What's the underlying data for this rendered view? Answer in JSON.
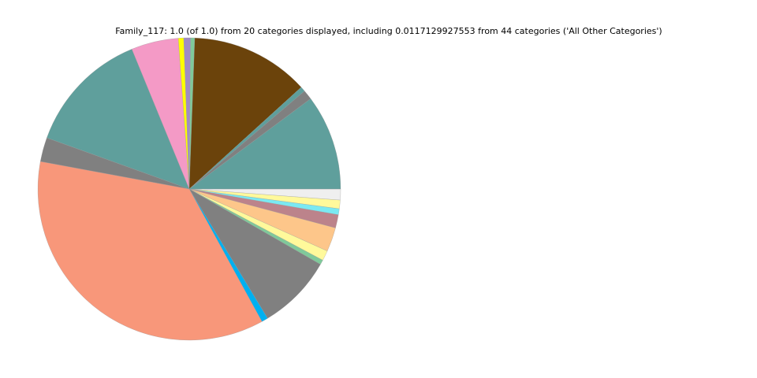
{
  "chart_data": {
    "type": "pie",
    "title": "Family_117: 1.0 (of 1.0) from 20 categories displayed, including 0.0117129927553 from 44 categories ('All Other Categories')",
    "start_angle_deg": 0,
    "direction": "clockwise",
    "slices": [
      {
        "value": 0.0117,
        "color": "#efefef"
      },
      {
        "value": 0.0092,
        "color": "#fff99b"
      },
      {
        "value": 0.0064,
        "color": "#7ae9f2"
      },
      {
        "value": 0.0142,
        "color": "#bc838b"
      },
      {
        "value": 0.0258,
        "color": "#fdc68a"
      },
      {
        "value": 0.0108,
        "color": "#fff99b"
      },
      {
        "value": 0.005,
        "color": "#7fc99a"
      },
      {
        "value": 0.0803,
        "color": "#808080"
      },
      {
        "value": 0.0069,
        "color": "#00b0f0"
      },
      {
        "value": 0.3589,
        "color": "#f8977a"
      },
      {
        "value": 0.0258,
        "color": "#808080"
      },
      {
        "value": 0.1331,
        "color": "#5f9f9c"
      },
      {
        "value": 0.0503,
        "color": "#f49ac6"
      },
      {
        "value": 0.0058,
        "color": "#ffff00"
      },
      {
        "value": 0.0072,
        "color": "#a08cc4"
      },
      {
        "value": 0.0044,
        "color": "#7fc99a"
      },
      {
        "value": 0.1267,
        "color": "#6b430b"
      },
      {
        "value": 0.0053,
        "color": "#5f9f9c"
      },
      {
        "value": 0.0103,
        "color": "#808080"
      },
      {
        "value": 0.1019,
        "color": "#5f9f9c"
      }
    ]
  }
}
